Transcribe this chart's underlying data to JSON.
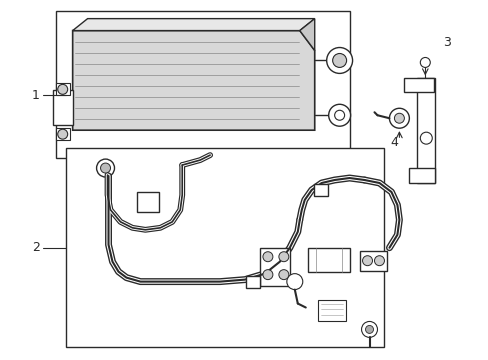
{
  "bg_color": "#ffffff",
  "line_color": "#2a2a2a",
  "fill_gray": "#d8d8d8",
  "fig_w": 4.89,
  "fig_h": 3.6,
  "dpi": 100
}
